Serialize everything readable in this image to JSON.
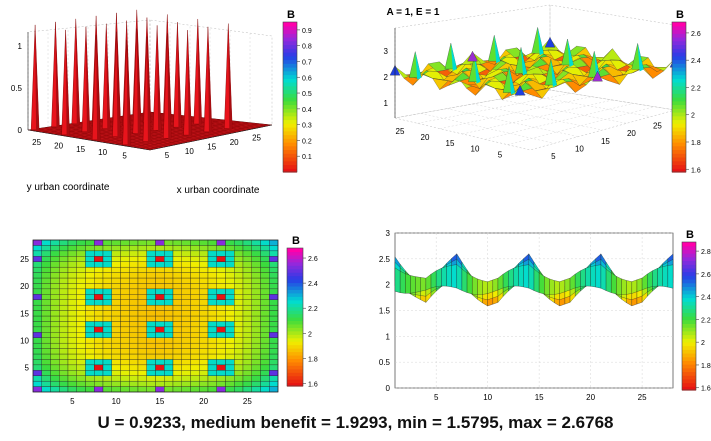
{
  "caption": "U = 0.9233, medium benefit = 1.9293, min = 1.5795, max = 2.6768",
  "chart_data": [
    {
      "type": "surface3d",
      "position": "top-left",
      "xlabel": "x urban coordinate",
      "ylabel": "y urban coordinate",
      "x_ticks": [
        "5",
        "10",
        "15",
        "20",
        "25"
      ],
      "y_ticks": [
        "5",
        "10",
        "15",
        "20",
        "25"
      ],
      "z_ticks": [
        "0",
        "0.5",
        "1"
      ],
      "zlim": [
        0,
        1
      ],
      "surface_color": "#e8141c",
      "colorbar": {
        "title": "B",
        "ticks": [
          "0.1",
          "0.2",
          "0.3",
          "0.4",
          "0.5",
          "0.6",
          "0.7",
          "0.8",
          "0.9"
        ],
        "range": [
          0,
          0.95
        ]
      },
      "description_note": "",
      "spikes": {
        "grid_count": [
          4,
          6
        ],
        "height": 1,
        "base": 0
      }
    },
    {
      "type": "surface3d",
      "position": "top-right",
      "title": "A = 1, E = 1",
      "x_ticks": [
        "5",
        "10",
        "15",
        "20",
        "25"
      ],
      "y_ticks": [
        "5",
        "10",
        "15",
        "20",
        "25"
      ],
      "z_ticks": [
        "1",
        "2",
        "3"
      ],
      "zlim": [
        0,
        3
      ],
      "colorbar": {
        "title": "B",
        "ticks": [
          "1.6",
          "1.8",
          "2",
          "2.2",
          "2.4",
          "2.6"
        ],
        "range": [
          1.58,
          2.68
        ]
      }
    },
    {
      "type": "heatmap",
      "position": "bottom-left",
      "x_ticks": [
        "5",
        "10",
        "15",
        "20",
        "25"
      ],
      "y_ticks": [
        "5",
        "10",
        "15",
        "20",
        "25"
      ],
      "grid_size": [
        28,
        28
      ],
      "value_range": [
        1.5795,
        2.6768
      ],
      "mean_value": 1.9293,
      "colorbar": {
        "title": "B",
        "ticks": [
          "1.6",
          "1.8",
          "2",
          "2.2",
          "2.4",
          "2.6"
        ],
        "range": [
          1.58,
          2.68
        ]
      }
    },
    {
      "type": "surface3d",
      "position": "bottom-right",
      "view": "side",
      "x_ticks": [
        "5",
        "10",
        "15",
        "20",
        "25"
      ],
      "z_ticks": [
        "0",
        "0.5",
        "1",
        "1.5",
        "2",
        "2.5",
        "3"
      ],
      "zlim": [
        0,
        3
      ],
      "colorbar": {
        "title": "B",
        "ticks": [
          "1.6",
          "1.8",
          "2",
          "2.2",
          "2.4",
          "2.6",
          "2.8"
        ],
        "range": [
          1.58,
          2.88
        ]
      }
    }
  ]
}
